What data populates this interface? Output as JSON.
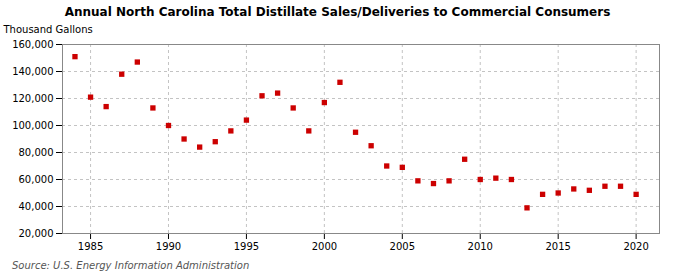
{
  "chart_data": {
    "type": "scatter",
    "title": "Annual North Carolina Total Distillate Sales/Deliveries to Commercial Consumers",
    "ylabel": "Thousand Gallons",
    "source": "Source: U.S. Energy Information Administration",
    "x": [
      1984,
      1985,
      1986,
      1987,
      1988,
      1989,
      1990,
      1991,
      1992,
      1993,
      1994,
      1995,
      1996,
      1997,
      1998,
      1999,
      2000,
      2001,
      2002,
      2003,
      2004,
      2005,
      2006,
      2007,
      2008,
      2009,
      2010,
      2011,
      2012,
      2013,
      2014,
      2015,
      2016,
      2017,
      2018,
      2019,
      2020
    ],
    "values": [
      151000,
      121000,
      114000,
      138000,
      147000,
      113000,
      100000,
      90000,
      84000,
      88000,
      96000,
      104000,
      122000,
      124000,
      113000,
      96000,
      117000,
      132000,
      95000,
      85000,
      70000,
      69000,
      59000,
      57000,
      59000,
      75000,
      60000,
      61000,
      60000,
      39000,
      49000,
      50000,
      53000,
      52000,
      55000,
      55000,
      49000
    ],
    "color": "#cc0000",
    "marker": "square",
    "grid": true,
    "xlim": [
      1983.2,
      2021.5
    ],
    "xticks": [
      1985,
      1990,
      1995,
      2000,
      2005,
      2010,
      2015,
      2020
    ],
    "ylim": [
      20000,
      160000
    ],
    "yticks": [
      {
        "value": 20000,
        "label": "20,000"
      },
      {
        "value": 40000,
        "label": "40,000"
      },
      {
        "value": 60000,
        "label": "60,000"
      },
      {
        "value": 80000,
        "label": "80,000"
      },
      {
        "value": 100000,
        "label": "100,000"
      },
      {
        "value": 120000,
        "label": "120,000"
      },
      {
        "value": 140000,
        "label": "140,000"
      },
      {
        "value": 160000,
        "label": "160,000"
      }
    ]
  }
}
